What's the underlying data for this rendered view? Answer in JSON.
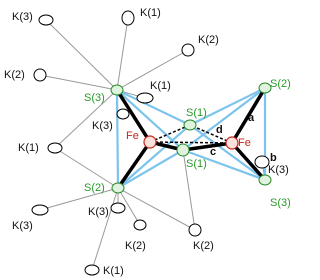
{
  "labels": [
    "K(3)",
    "K(1)",
    "K(2)",
    "K(2)",
    "S(3)",
    "K(1)",
    "K(3)",
    "Fe",
    "S(1)",
    "d",
    "Fe",
    "a",
    "c",
    "S(2)",
    "S(1)",
    "K(1)",
    "b",
    "K(3)",
    "S(2)",
    "S(3)",
    "K(3)",
    "K(3)",
    "K(2)",
    "K(2)",
    "K(1)"
  ]
}
